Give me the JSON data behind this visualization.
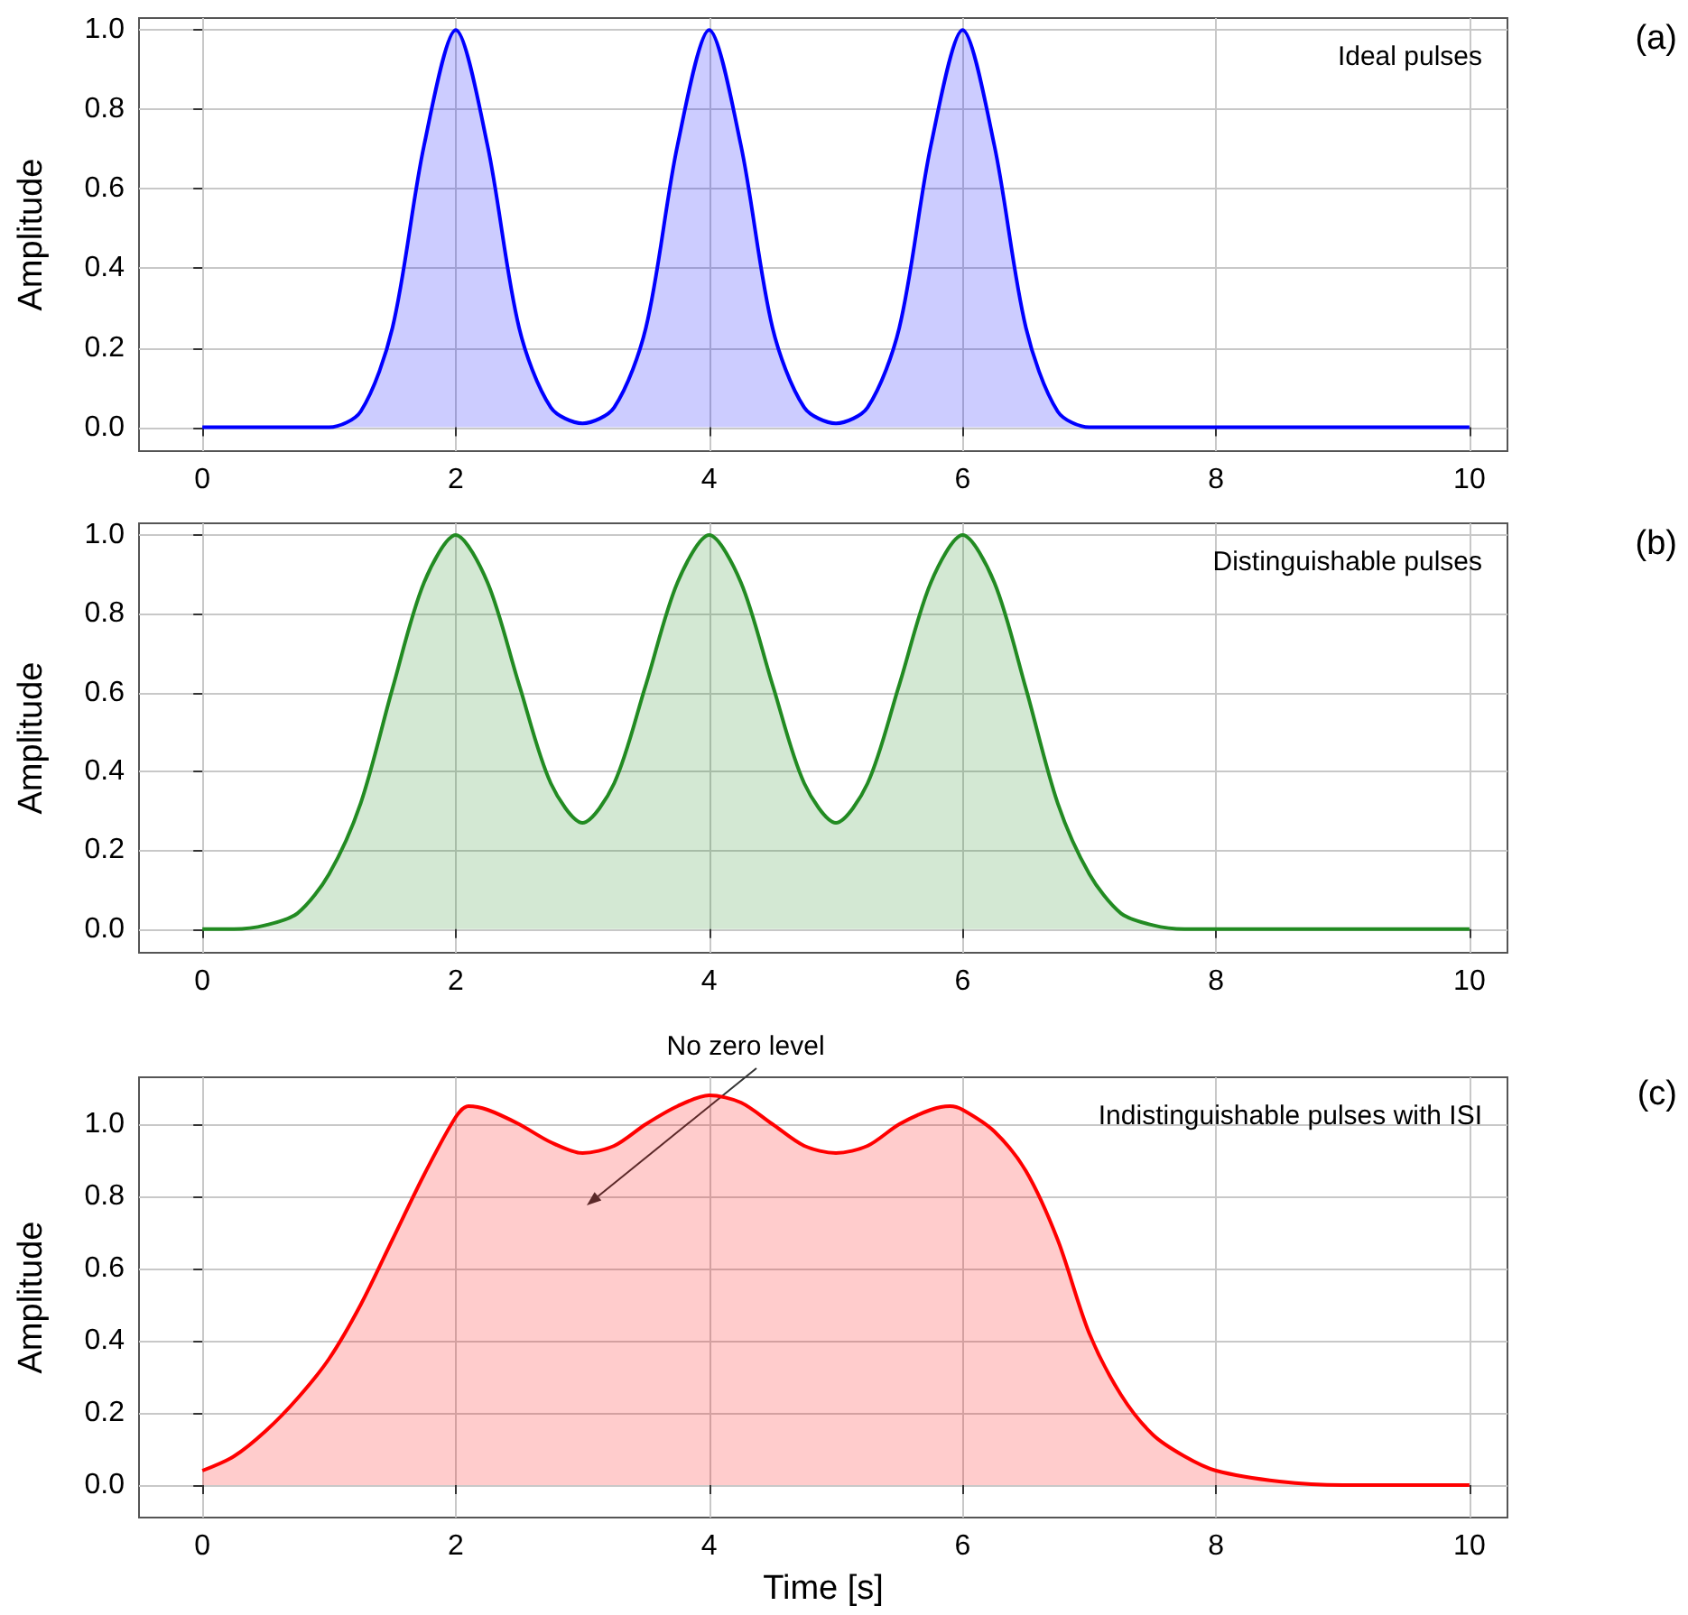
{
  "chart_data": [
    {
      "type": "area",
      "title": "Ideal pulses",
      "ylabel": "Amplitude",
      "annotations": [
        "(a)"
      ],
      "xlim": [
        -0.5,
        10.3
      ],
      "ylim": [
        -0.06,
        1.03
      ],
      "xticks": [
        0,
        2,
        4,
        6,
        8,
        10
      ],
      "yticks": [
        {
          "value": 0,
          "label": "0.0"
        },
        {
          "value": 0.2,
          "label": "0.2"
        },
        {
          "value": 0.4,
          "label": "0.4"
        },
        {
          "value": 0.6,
          "label": "0.6"
        },
        {
          "value": 0.8,
          "label": "0.8"
        },
        {
          "value": 1,
          "label": "1.0"
        }
      ],
      "grid": true,
      "marker": "none",
      "line_style": "solid",
      "series": [
        {
          "color": "#0000ff",
          "x": [
            0,
            0.25,
            0.5,
            0.75,
            1,
            1.25,
            1.5,
            1.75,
            2,
            2.25,
            2.5,
            2.75,
            3,
            3.25,
            3.5,
            3.75,
            4,
            4.25,
            4.5,
            4.75,
            5,
            5.25,
            5.5,
            5.75,
            6,
            6.25,
            6.5,
            6.75,
            7,
            7.25,
            7.5,
            8,
            8.5,
            9,
            9.5,
            10
          ],
          "values": [
            0,
            0,
            0,
            0,
            0,
            0.04,
            0.25,
            0.71,
            1,
            0.71,
            0.25,
            0.05,
            0.01,
            0.05,
            0.25,
            0.71,
            1,
            0.71,
            0.25,
            0.05,
            0.01,
            0.05,
            0.25,
            0.71,
            1,
            0.71,
            0.25,
            0.04,
            0,
            0,
            0,
            0,
            0,
            0,
            0,
            0
          ]
        }
      ]
    },
    {
      "type": "area",
      "title": "Distinguishable pulses",
      "ylabel": "Amplitude",
      "annotations": [
        "(b)"
      ],
      "xlim": [
        -0.5,
        10.3
      ],
      "ylim": [
        -0.06,
        1.03
      ],
      "xticks": [
        0,
        2,
        4,
        6,
        8,
        10
      ],
      "yticks": [
        {
          "value": 0,
          "label": "0.0"
        },
        {
          "value": 0.2,
          "label": "0.2"
        },
        {
          "value": 0.4,
          "label": "0.4"
        },
        {
          "value": 0.6,
          "label": "0.6"
        },
        {
          "value": 0.8,
          "label": "0.8"
        },
        {
          "value": 1,
          "label": "1.0"
        }
      ],
      "grid": true,
      "marker": "none",
      "line_style": "solid",
      "series": [
        {
          "color": "#228b22",
          "x": [
            0,
            0.25,
            0.5,
            0.75,
            1,
            1.25,
            1.5,
            1.75,
            2,
            2.25,
            2.5,
            2.75,
            3,
            3.25,
            3.5,
            3.75,
            4,
            4.25,
            4.5,
            4.75,
            5,
            5.25,
            5.5,
            5.75,
            6,
            6.25,
            6.5,
            6.75,
            7,
            7.25,
            7.5,
            7.75,
            8,
            8.5,
            9,
            9.5,
            10
          ],
          "values": [
            0,
            0,
            0.01,
            0.04,
            0.14,
            0.32,
            0.61,
            0.88,
            1,
            0.88,
            0.62,
            0.37,
            0.27,
            0.37,
            0.62,
            0.88,
            1,
            0.88,
            0.62,
            0.37,
            0.27,
            0.37,
            0.62,
            0.88,
            1,
            0.88,
            0.61,
            0.32,
            0.14,
            0.04,
            0.01,
            0,
            0,
            0,
            0,
            0,
            0
          ]
        }
      ]
    },
    {
      "type": "area",
      "title": "Indistinguishable pulses with ISI",
      "xlabel": "Time [s]",
      "ylabel": "Amplitude",
      "annotations": [
        "(c)",
        "No zero level"
      ],
      "xlim": [
        -0.5,
        10.3
      ],
      "ylim": [
        -0.09,
        1.13
      ],
      "xticks": [
        0,
        2,
        4,
        6,
        8,
        10
      ],
      "yticks": [
        {
          "value": 0,
          "label": "0.0"
        },
        {
          "value": 0.2,
          "label": "0.2"
        },
        {
          "value": 0.4,
          "label": "0.4"
        },
        {
          "value": 0.6,
          "label": "0.6"
        },
        {
          "value": 0.8,
          "label": "0.8"
        },
        {
          "value": 1,
          "label": "1.0"
        }
      ],
      "grid": true,
      "marker": "none",
      "line_style": "solid",
      "series": [
        {
          "color": "#ff0000",
          "x": [
            0,
            0.25,
            0.5,
            0.75,
            1,
            1.25,
            1.5,
            1.75,
            2,
            2.1,
            2.25,
            2.5,
            2.75,
            3,
            3.25,
            3.5,
            3.75,
            4,
            4.25,
            4.5,
            4.75,
            5,
            5.25,
            5.5,
            5.75,
            5.9,
            6,
            6.25,
            6.5,
            6.75,
            7,
            7.25,
            7.5,
            7.75,
            8,
            8.5,
            9,
            9.5,
            10
          ],
          "values": [
            0.04,
            0.08,
            0.15,
            0.24,
            0.35,
            0.5,
            0.68,
            0.86,
            1.02,
            1.05,
            1.04,
            1.0,
            0.95,
            0.92,
            0.94,
            1.0,
            1.05,
            1.08,
            1.06,
            1.0,
            0.94,
            0.92,
            0.94,
            1.0,
            1.04,
            1.05,
            1.04,
            0.98,
            0.87,
            0.68,
            0.42,
            0.25,
            0.14,
            0.08,
            0.04,
            0.01,
            0,
            0,
            0
          ]
        }
      ]
    }
  ]
}
